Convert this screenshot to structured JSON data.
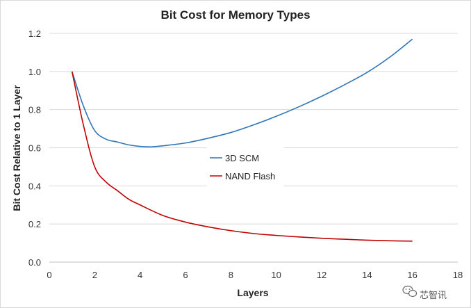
{
  "chart_data": {
    "type": "line",
    "title": "Bit Cost for Memory Types",
    "xlabel": "Layers",
    "ylabel": "Bit Cost Relative to 1 Layer",
    "xlim": [
      0,
      18
    ],
    "ylim": [
      0,
      1.2
    ],
    "x_ticks": [
      0,
      2,
      4,
      6,
      8,
      10,
      12,
      14,
      16,
      18
    ],
    "y_ticks": [
      "0.0",
      "0.2",
      "0.4",
      "0.6",
      "0.8",
      "1.0",
      "1.2"
    ],
    "grid": "horizontal",
    "legend_placement": "center",
    "series": [
      {
        "name": "3D SCM",
        "color": "#2e75b6",
        "x": [
          1,
          1.5,
          2,
          2.5,
          3,
          3.5,
          4,
          4.5,
          5,
          6,
          7,
          8,
          9,
          10,
          11,
          12,
          13,
          14,
          15,
          16
        ],
        "y": [
          1.0,
          0.82,
          0.69,
          0.645,
          0.63,
          0.615,
          0.607,
          0.605,
          0.61,
          0.625,
          0.65,
          0.68,
          0.72,
          0.765,
          0.815,
          0.87,
          0.93,
          0.995,
          1.075,
          1.17
        ]
      },
      {
        "name": "NAND Flash",
        "color": "#c00000",
        "x": [
          1,
          1.5,
          2,
          2.5,
          3,
          3.5,
          4,
          5,
          6,
          7,
          8,
          9,
          10,
          11,
          12,
          13,
          14,
          15,
          16
        ],
        "y": [
          1.0,
          0.72,
          0.5,
          0.42,
          0.375,
          0.33,
          0.3,
          0.245,
          0.21,
          0.185,
          0.165,
          0.15,
          0.14,
          0.132,
          0.125,
          0.12,
          0.115,
          0.112,
          0.11
        ]
      }
    ]
  },
  "watermark": {
    "icon": "wechat-icon",
    "text": "芯智讯"
  }
}
